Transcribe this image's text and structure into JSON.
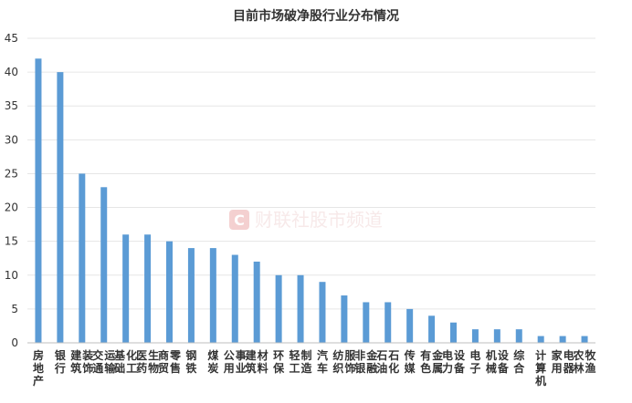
{
  "chart_data": {
    "type": "bar",
    "title": "目前市场破净股行业分布情况",
    "xlabel": "",
    "ylabel": "",
    "ylim": [
      0,
      45
    ],
    "yticks": [
      0,
      5,
      10,
      15,
      20,
      25,
      30,
      35,
      40,
      45
    ],
    "grid": true,
    "legend": "none",
    "bar_color": "#5b9bd5",
    "grid_color": "#e6e6e6",
    "categories": [
      "房地产",
      "银行",
      "建筑装饰",
      "交通运输",
      "基础化工",
      "医药生物",
      "商贸零售",
      "钢铁",
      "煤炭",
      "公用事业",
      "建筑材料",
      "环保",
      "轻工制造",
      "汽车",
      "纺织服饰",
      "非银金融",
      "石油石化",
      "传媒",
      "有色金属",
      "电力设备",
      "电子",
      "机械设备",
      "综合",
      "计算机",
      "家用电器",
      "农林牧渔"
    ],
    "values": [
      42,
      40,
      25,
      23,
      16,
      16,
      15,
      14,
      14,
      13,
      12,
      10,
      10,
      9,
      7,
      6,
      6,
      5,
      4,
      3,
      2,
      2,
      2,
      1,
      1,
      1
    ]
  },
  "watermark": {
    "logo_letter": "C",
    "text": "财联社股市频道",
    "color": "#e07a7a"
  }
}
